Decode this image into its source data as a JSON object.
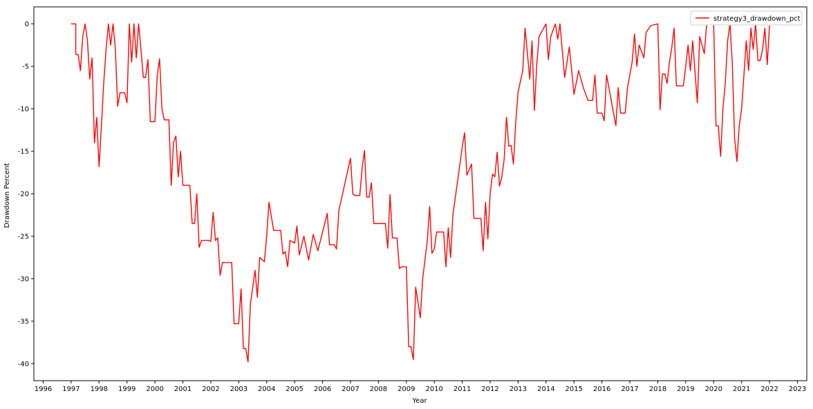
{
  "chart_data": {
    "type": "line",
    "title": "",
    "xlabel": "Year",
    "ylabel": "Drawdown Percent",
    "xlim": [
      "1995-09",
      "2023-05"
    ],
    "ylim": [
      -42,
      2
    ],
    "x_ticks": [
      "1996",
      "1997",
      "1998",
      "1999",
      "2000",
      "2001",
      "2002",
      "2003",
      "2004",
      "2005",
      "2006",
      "2007",
      "2008",
      "2009",
      "2010",
      "2011",
      "2012",
      "2013",
      "2014",
      "2015",
      "2016",
      "2017",
      "2018",
      "2019",
      "2020",
      "2021",
      "2022",
      "2023"
    ],
    "y_ticks": [
      0,
      -5,
      -10,
      -15,
      -20,
      -25,
      -30,
      -35,
      -40
    ],
    "grid": false,
    "legend": {
      "position": "top-right",
      "entries": [
        "strategy3_drawdown_pct"
      ]
    },
    "series": [
      {
        "name": "strategy3_drawdown_pct",
        "color": "#ff0000",
        "points": [
          [
            "1997-01",
            0
          ],
          [
            "1997-03",
            0
          ],
          [
            "1997-03",
            -3.6
          ],
          [
            "1997-04",
            -3.6
          ],
          [
            "1997-05",
            -5.5
          ],
          [
            "1997-06",
            -1.5
          ],
          [
            "1997-07",
            0
          ],
          [
            "1997-08",
            -2
          ],
          [
            "1997-09",
            -6.5
          ],
          [
            "1997-10",
            -4
          ],
          [
            "1997-11",
            -14
          ],
          [
            "1997-12",
            -11
          ],
          [
            "1998-01",
            -16.8
          ],
          [
            "1998-02",
            -12
          ],
          [
            "1998-03",
            -7
          ],
          [
            "1998-04",
            -3
          ],
          [
            "1998-05",
            0
          ],
          [
            "1998-06",
            -2.5
          ],
          [
            "1998-07",
            0
          ],
          [
            "1998-08",
            -3
          ],
          [
            "1998-09",
            -9.7
          ],
          [
            "1998-10",
            -8.1
          ],
          [
            "1998-12",
            -8.1
          ],
          [
            "1999-01",
            -9.3
          ],
          [
            "1999-02",
            0
          ],
          [
            "1999-03",
            -4.5
          ],
          [
            "1999-04",
            0
          ],
          [
            "1999-05",
            -4
          ],
          [
            "1999-06",
            0
          ],
          [
            "1999-07",
            -3
          ],
          [
            "1999-08",
            -6.3
          ],
          [
            "1999-09",
            -6.3
          ],
          [
            "1999-10",
            -4.2
          ],
          [
            "1999-11",
            -11.5
          ],
          [
            "2000-01",
            -11.5
          ],
          [
            "2000-02",
            -6
          ],
          [
            "2000-03",
            -4.1
          ],
          [
            "2000-04",
            -10
          ],
          [
            "2000-05",
            -11.3
          ],
          [
            "2000-07",
            -11.3
          ],
          [
            "2000-08",
            -19
          ],
          [
            "2000-09",
            -14
          ],
          [
            "2000-10",
            -13.2
          ],
          [
            "2000-11",
            -18
          ],
          [
            "2000-12",
            -15
          ],
          [
            "2001-01",
            -19
          ],
          [
            "2001-04",
            -19
          ],
          [
            "2001-05",
            -23.5
          ],
          [
            "2001-06",
            -23.5
          ],
          [
            "2001-07",
            -20
          ],
          [
            "2001-08",
            -26.3
          ],
          [
            "2001-09",
            -25.5
          ],
          [
            "2001-12",
            -25.5
          ],
          [
            "2002-01",
            -25.6
          ],
          [
            "2002-02",
            -22.2
          ],
          [
            "2002-03",
            -25.5
          ],
          [
            "2002-04",
            -25.2
          ],
          [
            "2002-05",
            -29.6
          ],
          [
            "2002-06",
            -28.1
          ],
          [
            "2002-10",
            -28.1
          ],
          [
            "2002-11",
            -35.3
          ],
          [
            "2003-01",
            -35.3
          ],
          [
            "2003-02",
            -31.2
          ],
          [
            "2003-03",
            -38.2
          ],
          [
            "2003-04",
            -38.2
          ],
          [
            "2003-05",
            -39.8
          ],
          [
            "2003-06",
            -33
          ],
          [
            "2003-08",
            -29
          ],
          [
            "2003-09",
            -32.2
          ],
          [
            "2003-10",
            -27.5
          ],
          [
            "2003-12",
            -28
          ],
          [
            "2004-01",
            -25
          ],
          [
            "2004-02",
            -21
          ],
          [
            "2004-04",
            -24.3
          ],
          [
            "2004-07",
            -24.3
          ],
          [
            "2004-08",
            -27.1
          ],
          [
            "2004-09",
            -26.8
          ],
          [
            "2004-10",
            -28.6
          ],
          [
            "2004-11",
            -25.5
          ],
          [
            "2005-01",
            -25.8
          ],
          [
            "2005-02",
            -23.8
          ],
          [
            "2005-03",
            -27.2
          ],
          [
            "2005-05",
            -25
          ],
          [
            "2005-07",
            -27.8
          ],
          [
            "2005-09",
            -24.8
          ],
          [
            "2005-11",
            -26.7
          ],
          [
            "2006-01",
            -24.5
          ],
          [
            "2006-03",
            -22.3
          ],
          [
            "2006-04",
            -26
          ],
          [
            "2006-06",
            -26
          ],
          [
            "2006-07",
            -26.5
          ],
          [
            "2006-08",
            -22
          ],
          [
            "2006-10",
            -19.5
          ],
          [
            "2007-01",
            -15.8
          ],
          [
            "2007-02",
            -20
          ],
          [
            "2007-03",
            -20.2
          ],
          [
            "2007-05",
            -20.2
          ],
          [
            "2007-06",
            -17
          ],
          [
            "2007-07",
            -14.9
          ],
          [
            "2007-08",
            -20.4
          ],
          [
            "2007-09",
            -20.4
          ],
          [
            "2007-10",
            -18.7
          ],
          [
            "2007-11",
            -23.5
          ],
          [
            "2008-04",
            -23.5
          ],
          [
            "2008-05",
            -26.4
          ],
          [
            "2008-06",
            -20.1
          ],
          [
            "2008-07",
            -25.2
          ],
          [
            "2008-09",
            -25.2
          ],
          [
            "2008-10",
            -28.8
          ],
          [
            "2008-11",
            -28.6
          ],
          [
            "2009-01",
            -28.6
          ],
          [
            "2009-02",
            -38
          ],
          [
            "2009-03",
            -38
          ],
          [
            "2009-04",
            -39.5
          ],
          [
            "2009-05",
            -31
          ],
          [
            "2009-07",
            -34.6
          ],
          [
            "2009-08",
            -30
          ],
          [
            "2009-10",
            -25.5
          ],
          [
            "2009-11",
            -21.5
          ],
          [
            "2009-12",
            -27
          ],
          [
            "2010-01",
            -26.5
          ],
          [
            "2010-02",
            -24.5
          ],
          [
            "2010-05",
            -24.5
          ],
          [
            "2010-06",
            -28.6
          ],
          [
            "2010-07",
            -24
          ],
          [
            "2010-08",
            -27.5
          ],
          [
            "2010-09",
            -22.5
          ],
          [
            "2010-11",
            -18.5
          ],
          [
            "2011-01",
            -14.5
          ],
          [
            "2011-02",
            -12.8
          ],
          [
            "2011-03",
            -17.8
          ],
          [
            "2011-05",
            -16.5
          ],
          [
            "2011-06",
            -22.9
          ],
          [
            "2011-09",
            -22.9
          ],
          [
            "2011-10",
            -26.7
          ],
          [
            "2011-11",
            -21
          ],
          [
            "2011-12",
            -25.3
          ],
          [
            "2012-01",
            -20
          ],
          [
            "2012-02",
            -17.7
          ],
          [
            "2012-03",
            -18
          ],
          [
            "2012-04",
            -15.1
          ],
          [
            "2012-05",
            -19.1
          ],
          [
            "2012-06",
            -18
          ],
          [
            "2012-07",
            -16
          ],
          [
            "2012-08",
            -11
          ],
          [
            "2012-09",
            -14.4
          ],
          [
            "2012-10",
            -14.3
          ],
          [
            "2012-11",
            -16.5
          ],
          [
            "2012-12",
            -11.5
          ],
          [
            "2013-01",
            -8
          ],
          [
            "2013-03",
            -5.5
          ],
          [
            "2013-04",
            -0.5
          ],
          [
            "2013-05",
            -3.5
          ],
          [
            "2013-06",
            -6.5
          ],
          [
            "2013-07",
            -2
          ],
          [
            "2013-08",
            -10.2
          ],
          [
            "2013-09",
            -4.8
          ],
          [
            "2013-10",
            -1.5
          ],
          [
            "2014-01",
            0
          ],
          [
            "2014-02",
            -4.2
          ],
          [
            "2014-03",
            -1.5
          ],
          [
            "2014-05",
            0
          ],
          [
            "2014-06",
            -1.8
          ],
          [
            "2014-07",
            0
          ],
          [
            "2014-08",
            -3.2
          ],
          [
            "2014-09",
            -6.3
          ],
          [
            "2014-11",
            -2.7
          ],
          [
            "2015-01",
            -8.3
          ],
          [
            "2015-03",
            -5.5
          ],
          [
            "2015-05",
            -7.5
          ],
          [
            "2015-07",
            -9
          ],
          [
            "2015-09",
            -9
          ],
          [
            "2015-10",
            -6
          ],
          [
            "2015-11",
            -10.5
          ],
          [
            "2016-01",
            -10.5
          ],
          [
            "2016-02",
            -11.4
          ],
          [
            "2016-03",
            -6
          ],
          [
            "2016-05",
            -9
          ],
          [
            "2016-07",
            -12
          ],
          [
            "2016-08",
            -7.5
          ],
          [
            "2016-09",
            -10.5
          ],
          [
            "2016-11",
            -10.5
          ],
          [
            "2016-12",
            -7.5
          ],
          [
            "2017-02",
            -4.5
          ],
          [
            "2017-03",
            -1.2
          ],
          [
            "2017-04",
            -5
          ],
          [
            "2017-05",
            -2.5
          ],
          [
            "2017-07",
            -4
          ],
          [
            "2017-08",
            -1
          ],
          [
            "2017-10",
            -0.2
          ],
          [
            "2018-01",
            0
          ],
          [
            "2018-02",
            -10.1
          ],
          [
            "2018-03",
            -5.9
          ],
          [
            "2018-04",
            -5.9
          ],
          [
            "2018-05",
            -7
          ],
          [
            "2018-06",
            -4.5
          ],
          [
            "2018-07",
            -2.8
          ],
          [
            "2018-08",
            -0.5
          ],
          [
            "2018-09",
            -7.3
          ],
          [
            "2018-11",
            -7.3
          ],
          [
            "2018-12",
            -7.3
          ],
          [
            "2019-01",
            -5
          ],
          [
            "2019-02",
            -2.5
          ],
          [
            "2019-03",
            -5.5
          ],
          [
            "2019-04",
            -2
          ],
          [
            "2019-06",
            -9.3
          ],
          [
            "2019-07",
            -1.5
          ],
          [
            "2019-09",
            -3.5
          ],
          [
            "2019-10",
            0
          ],
          [
            "2020-01",
            0
          ],
          [
            "2020-02",
            -12
          ],
          [
            "2020-03",
            -12
          ],
          [
            "2020-04",
            -15.6
          ],
          [
            "2020-05",
            -9.9
          ],
          [
            "2020-06",
            -7
          ],
          [
            "2020-07",
            -2
          ],
          [
            "2020-08",
            0
          ],
          [
            "2020-09",
            -4.5
          ],
          [
            "2020-10",
            -13.5
          ],
          [
            "2020-11",
            -16.2
          ],
          [
            "2020-12",
            -12
          ],
          [
            "2021-01",
            -10
          ],
          [
            "2021-02",
            -6
          ],
          [
            "2021-03",
            -2
          ],
          [
            "2021-04",
            -5.5
          ],
          [
            "2021-05",
            -0.5
          ],
          [
            "2021-06",
            -3
          ],
          [
            "2021-07",
            0
          ],
          [
            "2021-08",
            -4.3
          ],
          [
            "2021-09",
            -4.3
          ],
          [
            "2021-10",
            -3
          ],
          [
            "2021-11",
            -0.5
          ],
          [
            "2021-12",
            -4.8
          ],
          [
            "2022-01",
            -0.2
          ]
        ]
      }
    ]
  }
}
